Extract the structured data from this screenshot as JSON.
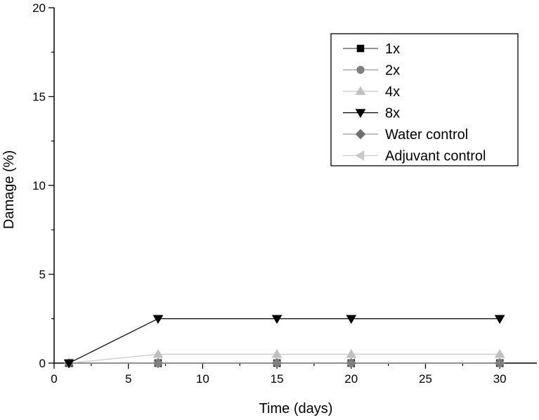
{
  "chart_data": {
    "type": "line",
    "title": "",
    "xlabel": "Time (days)",
    "ylabel": "Damage (%)",
    "xlim": [
      0,
      32.5
    ],
    "ylim": [
      0,
      20
    ],
    "x_ticks": [
      0,
      5,
      10,
      15,
      20,
      25,
      30
    ],
    "y_ticks": [
      0,
      5,
      10,
      15,
      20
    ],
    "grid": false,
    "legend_position": "top-right",
    "series": [
      {
        "name": "1x",
        "marker": "square",
        "color": "#000000",
        "line_color": "#555555",
        "x": [
          1,
          7,
          15,
          20,
          30
        ],
        "values": [
          0,
          0,
          0,
          0,
          0
        ]
      },
      {
        "name": "2x",
        "marker": "circle",
        "color": "#7f7f7f",
        "line_color": "#9a9a9a",
        "x": [
          1,
          7,
          15,
          20,
          30
        ],
        "values": [
          0,
          0,
          0,
          0,
          0
        ]
      },
      {
        "name": "4x",
        "marker": "triangle-up",
        "color": "#c0c0c0",
        "line_color": "#c8c8c8",
        "x": [
          1,
          7,
          15,
          20,
          30
        ],
        "values": [
          0,
          0.5,
          0.5,
          0.5,
          0.5
        ]
      },
      {
        "name": "8x",
        "marker": "triangle-down",
        "color": "#000000",
        "line_color": "#000000",
        "x": [
          1,
          7,
          15,
          20,
          30
        ],
        "values": [
          0,
          2.5,
          2.5,
          2.5,
          2.5
        ]
      },
      {
        "name": "Water control",
        "marker": "diamond",
        "color": "#6f6f6f",
        "line_color": "#9a9a9a",
        "x": [
          1,
          7,
          15,
          20,
          30
        ],
        "values": [
          0,
          0,
          0,
          0,
          0
        ]
      },
      {
        "name": "Adjuvant control",
        "marker": "triangle-left",
        "color": "#c8c8c8",
        "line_color": "#d0d0d0",
        "x": [
          1,
          7,
          15,
          20,
          30
        ],
        "values": [
          0,
          0,
          0,
          0,
          0
        ]
      }
    ]
  }
}
